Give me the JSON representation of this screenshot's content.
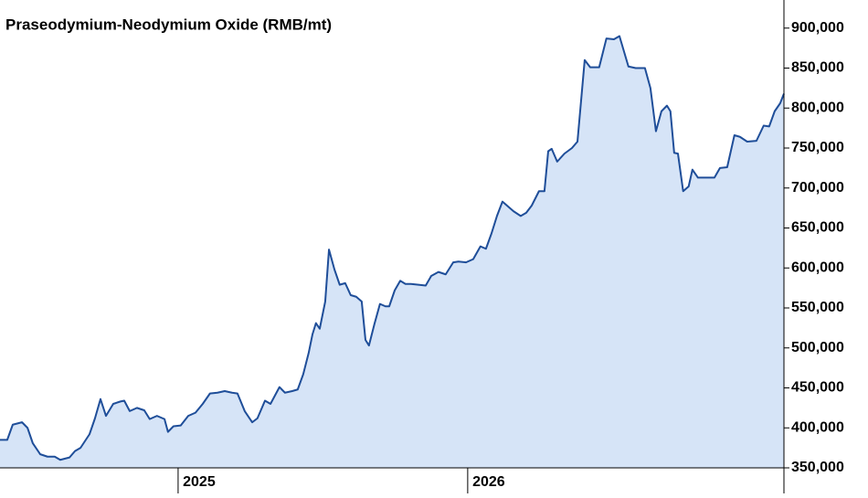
{
  "chart_data": {
    "type": "area",
    "title": "Praseodymium-Neodymium Oxide (RMB/mt)",
    "x": [
      2024.385,
      2024.41,
      2024.429,
      2024.461,
      2024.48,
      2024.498,
      2024.524,
      2024.549,
      2024.574,
      2024.593,
      2024.625,
      2024.644,
      2024.663,
      2024.694,
      2024.713,
      2024.732,
      2024.751,
      2024.776,
      2024.801,
      2024.814,
      2024.833,
      2024.858,
      2024.883,
      2024.902,
      2024.927,
      2024.953,
      2024.965,
      2024.984,
      2025.009,
      2025.035,
      2025.06,
      2025.085,
      2025.11,
      2025.136,
      2025.161,
      2025.186,
      2025.205,
      2025.23,
      2025.256,
      2025.274,
      2025.3,
      2025.319,
      2025.35,
      2025.369,
      2025.394,
      2025.413,
      2025.432,
      2025.451,
      2025.464,
      2025.476,
      2025.489,
      2025.508,
      2025.521,
      2025.54,
      2025.558,
      2025.577,
      2025.596,
      2025.615,
      2025.634,
      2025.647,
      2025.659,
      2025.678,
      2025.697,
      2025.716,
      2025.729,
      2025.748,
      2025.767,
      2025.785,
      2025.804,
      2025.83,
      2025.855,
      2025.874,
      2025.899,
      2025.924,
      2025.95,
      2025.968,
      2025.994,
      2026.019,
      2026.044,
      2026.063,
      2026.082,
      2026.101,
      2026.12,
      2026.139,
      2026.158,
      2026.183,
      2026.202,
      2026.221,
      2026.246,
      2026.265,
      2026.278,
      2026.29,
      2026.309,
      2026.334,
      2026.36,
      2026.379,
      2026.404,
      2026.423,
      2026.454,
      2026.479,
      2026.505,
      2026.524,
      2026.555,
      2026.58,
      2026.612,
      2026.631,
      2026.65,
      2026.669,
      2026.688,
      2026.7,
      2026.713,
      2026.726,
      2026.744,
      2026.763,
      2026.776,
      2026.795,
      2026.82,
      2026.852,
      2026.871,
      2026.896,
      2026.921,
      2026.94,
      2026.965,
      2026.997,
      2027.022,
      2027.041,
      2027.06,
      2027.079,
      2027.092
    ],
    "values": [
      385000,
      385000,
      404000,
      407000,
      400000,
      381000,
      367000,
      364000,
      364000,
      360000,
      363000,
      371000,
      375000,
      392000,
      412000,
      436000,
      415000,
      430000,
      433000,
      434000,
      421000,
      425000,
      422000,
      411000,
      415000,
      411000,
      395000,
      402000,
      403000,
      415000,
      419000,
      430000,
      443000,
      444000,
      446000,
      444000,
      443000,
      421000,
      407000,
      412000,
      434000,
      430000,
      451000,
      444000,
      446000,
      448000,
      467000,
      494000,
      517000,
      531000,
      524000,
      558000,
      623000,
      598000,
      579000,
      581000,
      566000,
      564000,
      558000,
      510000,
      503000,
      530000,
      555000,
      552000,
      552000,
      572000,
      584000,
      580000,
      580000,
      579000,
      578000,
      590000,
      595000,
      592000,
      607000,
      608000,
      607000,
      611000,
      627000,
      624000,
      643000,
      665000,
      683000,
      677000,
      671000,
      665000,
      669000,
      678000,
      696000,
      696000,
      746000,
      749000,
      733000,
      743000,
      750000,
      758000,
      860000,
      851000,
      851000,
      887000,
      886000,
      890000,
      852000,
      850000,
      850000,
      825000,
      771000,
      796000,
      803000,
      796000,
      744000,
      743000,
      696000,
      702000,
      723000,
      713000,
      713000,
      713000,
      725000,
      726000,
      766000,
      764000,
      758000,
      759000,
      778000,
      777000,
      796000,
      806000,
      818000
    ],
    "color": "#1f4e99",
    "fill_color": "#d6e4f7",
    "xlim": [
      2024.385,
      2027.092
    ],
    "xticks": [
      {
        "value": 2025,
        "label": "2025"
      },
      {
        "value": 2026,
        "label": "2026"
      }
    ],
    "ylim": [
      350000,
      926000
    ],
    "yticks": [
      {
        "value": 350000,
        "label": "350,000"
      },
      {
        "value": 400000,
        "label": "400,000"
      },
      {
        "value": 450000,
        "label": "450,000"
      },
      {
        "value": 500000,
        "label": "500,000"
      },
      {
        "value": 550000,
        "label": "550,000"
      },
      {
        "value": 600000,
        "label": "600,000"
      },
      {
        "value": 650000,
        "label": "650,000"
      },
      {
        "value": 700000,
        "label": "700,000"
      },
      {
        "value": 750000,
        "label": "750,000"
      },
      {
        "value": 800000,
        "label": "800,000"
      },
      {
        "value": 850000,
        "label": "850,000"
      },
      {
        "value": 900000,
        "label": "900,000"
      }
    ],
    "y_axis_side": "right"
  }
}
